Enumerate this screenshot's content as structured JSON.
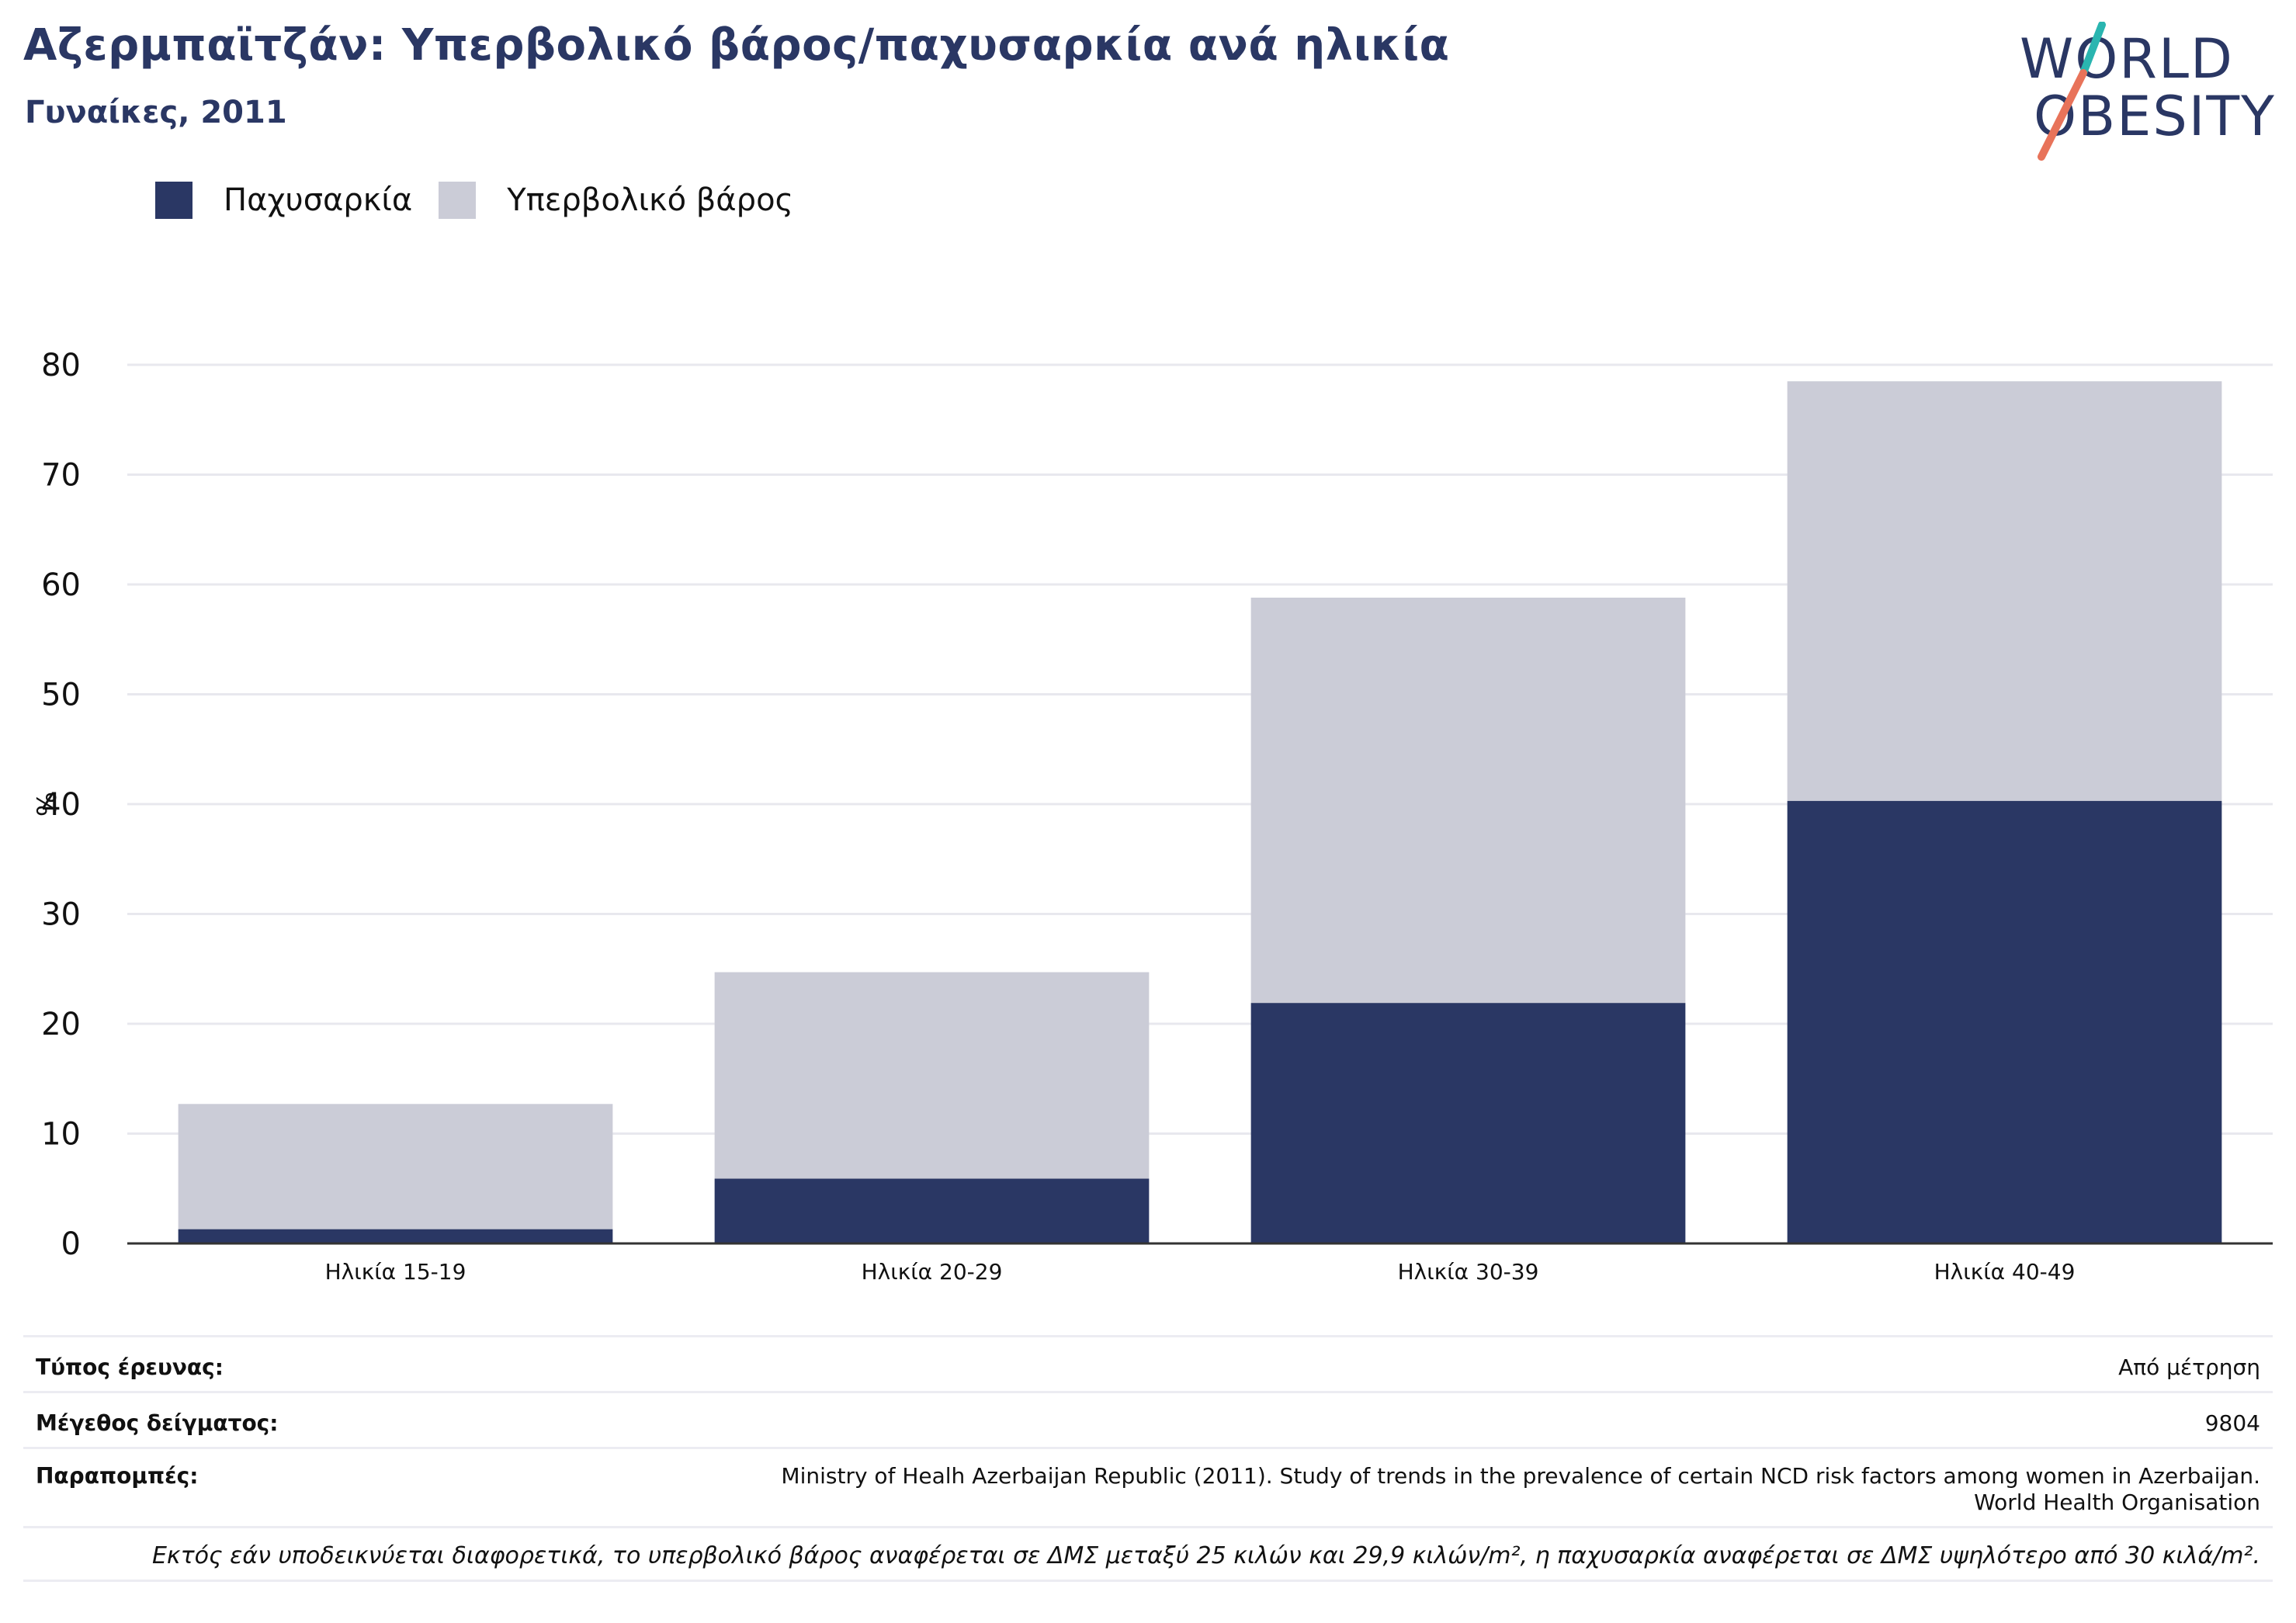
{
  "title": "Αζερμπαϊτζάν: Υπερβολικό βάρος/παχυσαρκία ανά ηλικία",
  "subtitle": "Γυναίκες, 2011",
  "logo": {
    "line1": "WORLD",
    "line2": "OBESITY"
  },
  "colors": {
    "obesity": "#2a3764",
    "overweight": "#cbccd7",
    "title": "#2a3764",
    "slash_teal": "#2ab5b0",
    "slash_coral": "#e8735a"
  },
  "legend": [
    {
      "label": "Παχυσαρκία",
      "color": "#2a3764"
    },
    {
      "label": "Υπερβολικό βάρος",
      "color": "#cbccd7"
    }
  ],
  "chart_data": {
    "type": "bar",
    "stacked": true,
    "categories": [
      "Ηλικία 15-19",
      "Ηλικία 20-29",
      "Ηλικία 30-39",
      "Ηλικία 40-49"
    ],
    "series": [
      {
        "name": "Παχυσαρκία",
        "values": [
          1.3,
          5.9,
          21.9,
          40.3
        ]
      },
      {
        "name": "Υπερβολικό βάρος",
        "values": [
          11.4,
          18.8,
          36.9,
          38.2
        ]
      }
    ],
    "ylabel": "%",
    "ylim": [
      0,
      80
    ],
    "yticks": [
      0,
      10,
      20,
      30,
      40,
      50,
      60,
      70,
      80
    ],
    "grid": true,
    "legend_position": "top-left"
  },
  "info": {
    "survey_type_label": "Τύπος έρευνας:",
    "survey_type_value": "Από μέτρηση",
    "sample_size_label": "Μέγεθος δείγματος:",
    "sample_size_value": "9804",
    "references_label": "Παραπομπές:",
    "references_line1": "Ministry of Healh Azerbaijan Republic (2011). Study of trends in the prevalence of certain NCD risk factors among women in Azerbaijan.",
    "references_line2": "World Health Organisation",
    "note": "Εκτός εάν υποδεικνύεται διαφορετικά, το υπερβολικό βάρος αναφέρεται σε ΔΜΣ μεταξύ 25 κιλών και 29,9 κιλών/m², η παχυσαρκία αναφέρεται σε ΔΜΣ υψηλότερο από 30 κιλά/m²."
  }
}
